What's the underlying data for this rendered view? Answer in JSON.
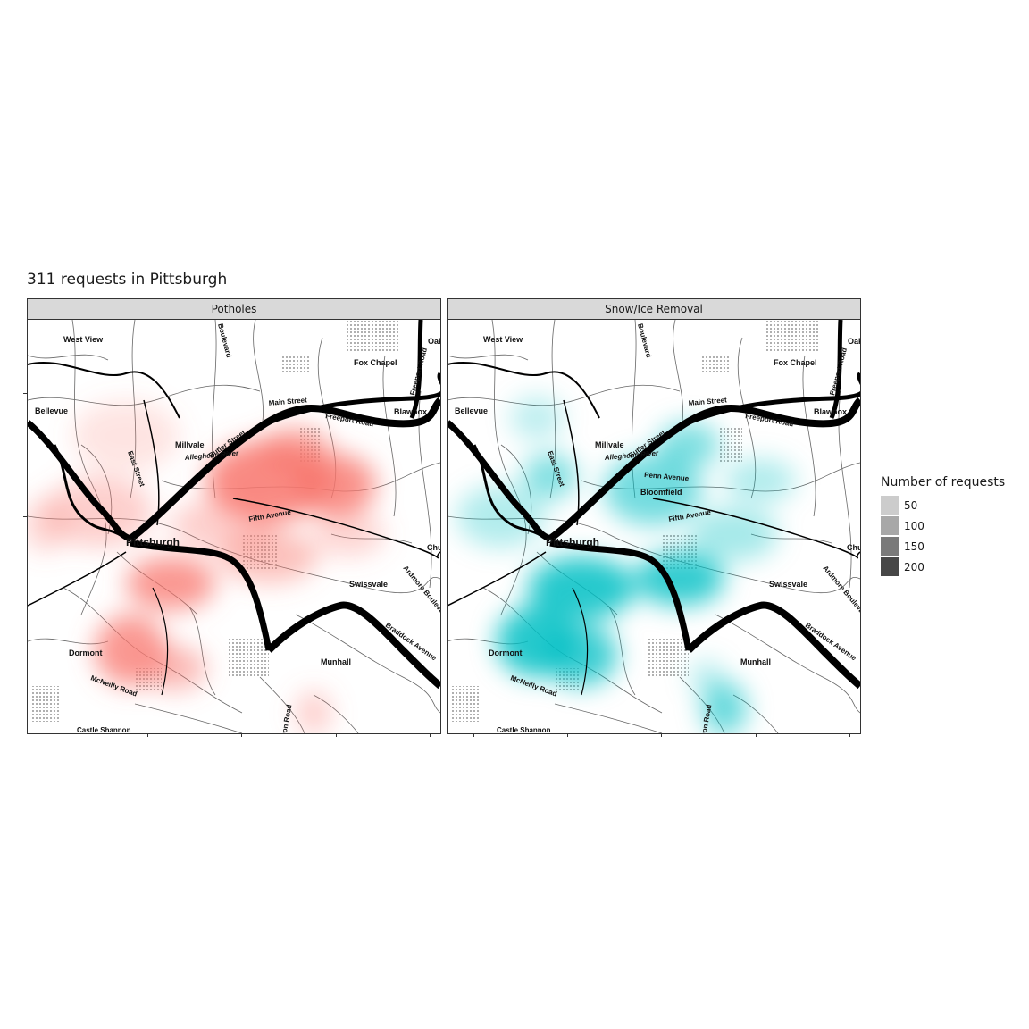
{
  "title": "311 requests in Pittsburgh",
  "legend": {
    "title": "Number of requests",
    "items": [
      {
        "label": "50",
        "color": "#cccccc"
      },
      {
        "label": "100",
        "color": "#a8a8a8"
      },
      {
        "label": "150",
        "color": "#7a7a7a"
      },
      {
        "label": "200",
        "color": "#474747"
      }
    ]
  },
  "panels": [
    {
      "label": "Potholes",
      "color": "#f8766d"
    },
    {
      "label": "Snow/Ice Removal",
      "color": "#00bfc4"
    }
  ],
  "map_labels": {
    "west_view": "West View",
    "bellevue": "Bellevue",
    "millvale": "Millvale",
    "fox_chapel": "Fox Chapel",
    "blawnox": "Blawnox",
    "pittsburgh": "Pittsburgh",
    "swissvale": "Swissvale",
    "munhall": "Munhall",
    "dormont": "Dormont",
    "castle_shannon": "Castle Shannon",
    "mcneilly_road": "McNeilly Road",
    "main_street": "Main Street",
    "freeport_road": "Freeport Road",
    "freeport_road_vertical": "Freeport Road",
    "butler_street": "Butler Street",
    "allegheny_river": "Allegheny River",
    "fifth_avenue": "Fifth Avenue",
    "penn_avenue": "Penn Avenue",
    "bloomfield": "Bloomfield",
    "east_street": "East Street",
    "boulevard": "Boulevard",
    "ardmore_boulevard": "Ardmore Boulevard",
    "braddock_avenue": "Braddock Avenue",
    "churchill": "Chu",
    "oakmont": "Oak",
    "shannon_road": "anon Road"
  }
}
